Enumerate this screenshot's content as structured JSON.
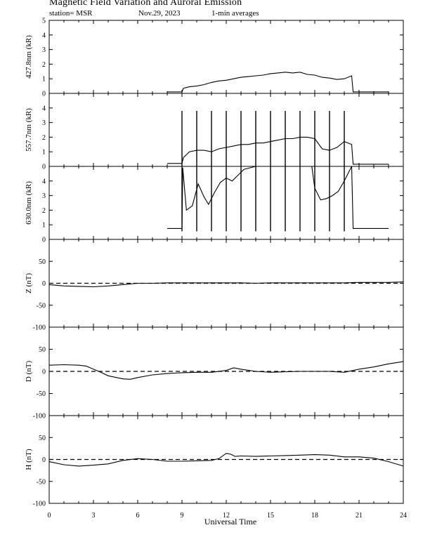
{
  "header": {
    "title": "Magnetic Field Variation and Auroral Emission",
    "station": "station= MSR",
    "date": "Nov.29, 2023",
    "averaging": "1-min averages"
  },
  "chart_data": [
    {
      "type": "line",
      "ylabel": "427.8nm (kR)",
      "ylim": [
        0,
        5
      ],
      "yticks": [
        0,
        1,
        2,
        3,
        4,
        5
      ],
      "x": [
        8.0,
        8.5,
        9.0,
        9.1,
        9.5,
        10.0,
        10.5,
        11.0,
        11.5,
        12.0,
        12.5,
        13.0,
        13.5,
        14.0,
        14.5,
        15.0,
        15.5,
        16.0,
        16.5,
        17.0,
        17.5,
        18.0,
        18.5,
        19.0,
        19.5,
        20.0,
        20.5,
        20.6,
        21.0,
        21.5,
        22.0,
        22.5,
        23.0
      ],
      "y": [
        0.1,
        0.1,
        0.1,
        0.35,
        0.45,
        0.5,
        0.6,
        0.75,
        0.85,
        0.9,
        1.0,
        1.1,
        1.15,
        1.2,
        1.25,
        1.35,
        1.4,
        1.45,
        1.4,
        1.45,
        1.3,
        1.25,
        1.1,
        1.05,
        0.95,
        1.0,
        1.2,
        0.1,
        0.1,
        0.1,
        0.1,
        0.1,
        0.1
      ]
    },
    {
      "type": "line",
      "ylabel": "557.7nm (kR)",
      "ylim": [
        0,
        5
      ],
      "yticks": [
        0,
        1,
        2,
        3,
        4
      ],
      "x": [
        8.0,
        8.5,
        9.0,
        9.1,
        9.5,
        10.0,
        10.5,
        11.0,
        11.5,
        12.0,
        12.5,
        13.0,
        13.5,
        14.0,
        14.5,
        15.0,
        15.5,
        16.0,
        16.5,
        17.0,
        17.5,
        18.0,
        18.5,
        19.0,
        19.5,
        20.0,
        20.5,
        20.6,
        21.0,
        21.5,
        22.0,
        22.5,
        23.0
      ],
      "y": [
        0.2,
        0.2,
        0.2,
        0.6,
        1.0,
        1.1,
        1.1,
        1.0,
        1.2,
        1.3,
        1.4,
        1.5,
        1.5,
        1.6,
        1.6,
        1.7,
        1.8,
        1.9,
        1.9,
        2.0,
        2.0,
        1.9,
        1.2,
        1.1,
        1.3,
        1.7,
        1.5,
        0.15,
        0.15,
        0.15,
        0.15,
        0.15,
        0.15
      ],
      "spikes_x": [
        9.0,
        10.0,
        11.0,
        12.0,
        13.0,
        14.0,
        15.0,
        16.0,
        17.0,
        18.0,
        19.0,
        20.0
      ],
      "spike_peak": 3.8
    },
    {
      "type": "line",
      "ylabel": "630.0nm (kR)",
      "ylim": [
        0,
        5
      ],
      "yticks": [
        0,
        1,
        2,
        3,
        4
      ],
      "x": [
        8.0,
        8.5,
        9.0,
        9.05,
        9.3,
        9.7,
        10.1,
        10.5,
        10.8,
        11.2,
        11.6,
        12.0,
        12.4,
        12.8,
        13.2,
        14.0,
        15.0,
        16.0,
        17.0,
        17.8,
        18.0,
        18.4,
        18.8,
        19.2,
        19.6,
        20.0,
        20.5,
        20.6,
        21.0,
        21.5,
        22.0,
        22.5,
        23.0
      ],
      "y": [
        0.75,
        0.75,
        0.75,
        4.9,
        2.0,
        2.3,
        3.8,
        2.9,
        2.4,
        3.2,
        3.9,
        4.2,
        4.0,
        4.4,
        4.8,
        5.0,
        5.0,
        5.0,
        5.0,
        5.0,
        3.5,
        2.7,
        2.8,
        3.0,
        3.3,
        4.0,
        5.0,
        0.75,
        0.75,
        0.75,
        0.75,
        0.75,
        0.75
      ],
      "spikes_x": [
        9.0,
        10.0,
        11.0,
        12.0,
        13.0,
        14.0,
        15.0,
        16.0,
        17.0,
        18.0,
        19.0,
        20.0
      ],
      "spike_low": 0.55
    },
    {
      "type": "line",
      "ylabel": "Z (nT)",
      "ylim": [
        -100,
        100
      ],
      "yticks": [
        -100,
        -50,
        0,
        50
      ],
      "x": [
        0,
        1,
        2,
        3,
        4,
        5,
        6,
        7,
        8,
        9,
        10,
        11,
        12,
        13,
        14,
        15,
        16,
        17,
        18,
        19,
        20,
        21,
        22,
        23,
        24
      ],
      "y": [
        -3,
        -6,
        -7,
        -8,
        -6,
        -3,
        0,
        0,
        1,
        1,
        1,
        1,
        1,
        1,
        0,
        1,
        1,
        1,
        1,
        1,
        1,
        2,
        2,
        2,
        3
      ]
    },
    {
      "type": "line",
      "ylabel": "D (nT)",
      "ylim": [
        -100,
        100
      ],
      "yticks": [
        -100,
        -50,
        0,
        50
      ],
      "x": [
        0,
        1,
        2,
        2.5,
        3,
        3.5,
        4,
        5,
        5.5,
        6,
        7,
        8,
        9,
        10,
        11,
        12,
        12.5,
        13,
        14,
        15,
        16,
        17,
        18,
        19,
        20,
        21,
        22,
        23,
        24
      ],
      "y": [
        14,
        15,
        14,
        12,
        5,
        -2,
        -10,
        -17,
        -18,
        -14,
        -8,
        -5,
        -3,
        -2,
        -2,
        2,
        8,
        5,
        0,
        -2,
        -1,
        0,
        0,
        0,
        -2,
        5,
        10,
        17,
        22
      ]
    },
    {
      "type": "line",
      "ylabel": "H (nT)",
      "ylim": [
        -100,
        100
      ],
      "yticks": [
        -100,
        -50,
        0,
        50
      ],
      "x": [
        0,
        1,
        2,
        3,
        4,
        4.5,
        5,
        6,
        7,
        8,
        9,
        10,
        11,
        11.5,
        12,
        12.3,
        12.6,
        13,
        14,
        15,
        16,
        17,
        18,
        19,
        20,
        21,
        22,
        23,
        24
      ],
      "y": [
        -5,
        -12,
        -15,
        -13,
        -10,
        -6,
        -2,
        2,
        0,
        -4,
        -4,
        -3,
        -2,
        2,
        14,
        12,
        7,
        8,
        7,
        8,
        9,
        10,
        11,
        10,
        6,
        6,
        3,
        -5,
        -15
      ]
    }
  ],
  "xaxis": {
    "label": "Universal Time",
    "xlim": [
      0,
      24
    ],
    "ticks": [
      0,
      3,
      6,
      9,
      12,
      15,
      18,
      21,
      24
    ]
  }
}
